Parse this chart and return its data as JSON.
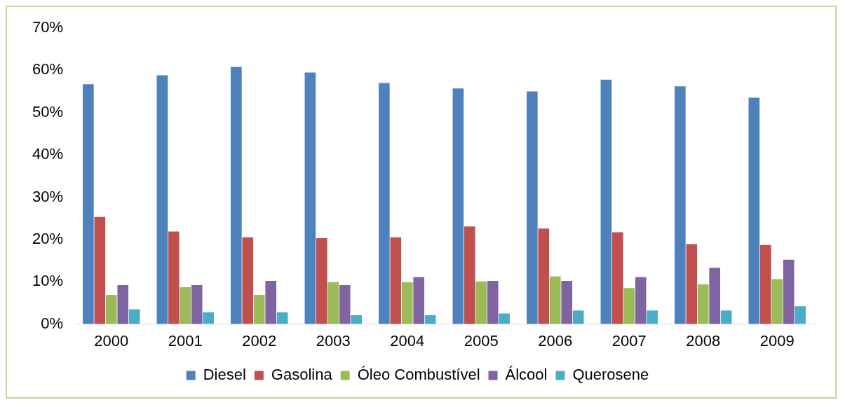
{
  "chart_data": {
    "type": "bar",
    "categories": [
      "2000",
      "2001",
      "2002",
      "2003",
      "2004",
      "2005",
      "2006",
      "2007",
      "2008",
      "2009"
    ],
    "series": [
      {
        "name": "Diesel",
        "color": "#4f81bd",
        "values": [
          56.7,
          58.8,
          60.8,
          59.5,
          57,
          55.7,
          55,
          57.8,
          56.2,
          53.5
        ]
      },
      {
        "name": "Gasolina",
        "color": "#c0504d",
        "values": [
          25.3,
          21.9,
          20.5,
          20.3,
          20.5,
          23.1,
          22.6,
          21.7,
          18.9,
          18.7
        ]
      },
      {
        "name": "Óleo Combustível",
        "color": "#9bbb59",
        "values": [
          6.9,
          8.7,
          6.9,
          9.9,
          9.9,
          10.1,
          11.3,
          8.5,
          9.4,
          10.6
        ]
      },
      {
        "name": "Álcool",
        "color": "#8064a2",
        "values": [
          9.2,
          9.2,
          10.2,
          9.2,
          11.1,
          10.2,
          10.2,
          11.1,
          13.3,
          15.2
        ]
      },
      {
        "name": "Querosene",
        "color": "#4bacc6",
        "values": [
          3.5,
          2.8,
          2.8,
          2.1,
          2.1,
          2.5,
          3.2,
          3.2,
          3.2,
          4.2
        ]
      }
    ],
    "ylim": [
      0,
      70
    ],
    "yticks": [
      {
        "value": 0,
        "label": "0%"
      },
      {
        "value": 10,
        "label": "10%"
      },
      {
        "value": 20,
        "label": "20%"
      },
      {
        "value": 30,
        "label": "30%"
      },
      {
        "value": 40,
        "label": "40%"
      },
      {
        "value": 50,
        "label": "50%"
      },
      {
        "value": 60,
        "label": "60%"
      },
      {
        "value": 70,
        "label": "70%"
      }
    ],
    "grid": false,
    "legend": "bottom"
  }
}
